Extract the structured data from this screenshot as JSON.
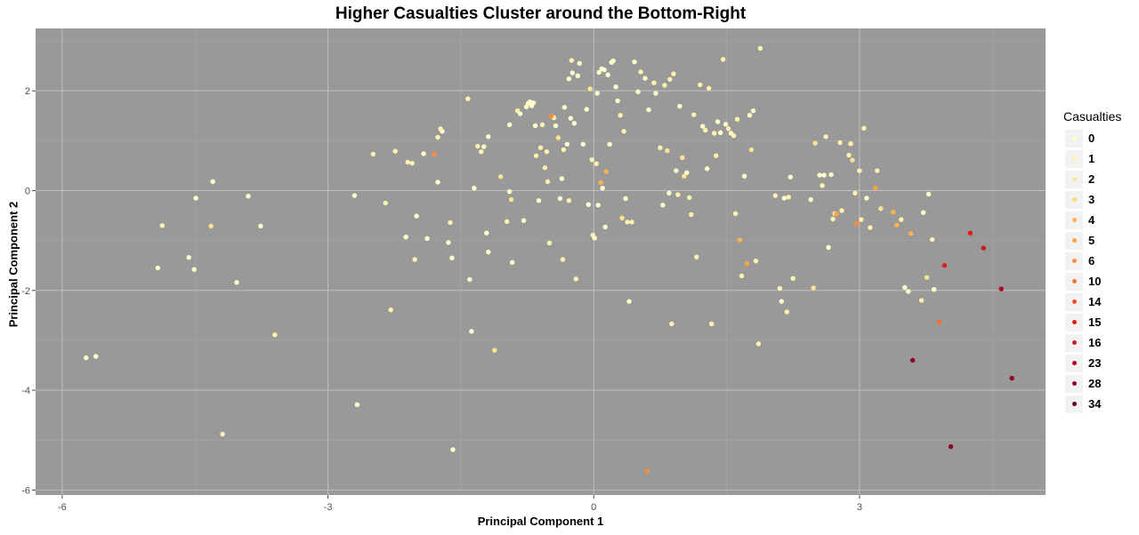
{
  "chart_data": {
    "type": "scatter",
    "title": "Higher Casualties Cluster around the Bottom-Right",
    "xlabel": "Principal Component 1",
    "ylabel": "Principal Component 2",
    "xlim": [
      -6.3,
      5.1
    ],
    "ylim": [
      -6.1,
      3.25
    ],
    "xticks": [
      -6,
      -3,
      0,
      3
    ],
    "yticks": [
      -6,
      -4,
      -2,
      0,
      2
    ],
    "grid": true,
    "legend": {
      "title": "Casualties",
      "position": "right",
      "levels": [
        {
          "label": "0",
          "color": "#ffffcc"
        },
        {
          "label": "1",
          "color": "#fff2ae"
        },
        {
          "label": "2",
          "color": "#fee391"
        },
        {
          "label": "3",
          "color": "#fed976"
        },
        {
          "label": "4",
          "color": "#feb24c"
        },
        {
          "label": "5",
          "color": "#fda444"
        },
        {
          "label": "6",
          "color": "#fd8d3c"
        },
        {
          "label": "10",
          "color": "#f87036"
        },
        {
          "label": "14",
          "color": "#f4502c"
        },
        {
          "label": "15",
          "color": "#e31a1c"
        },
        {
          "label": "16",
          "color": "#cb1a22"
        },
        {
          "label": "23",
          "color": "#b10026"
        },
        {
          "label": "28",
          "color": "#900024"
        },
        {
          "label": "34",
          "color": "#6a0020"
        }
      ]
    },
    "points": [
      {
        "x": -5.73,
        "y": -3.35,
        "c": "0"
      },
      {
        "x": -5.62,
        "y": -3.32,
        "c": "0"
      },
      {
        "x": -4.92,
        "y": -1.55,
        "c": "0"
      },
      {
        "x": -4.87,
        "y": -0.7,
        "c": "1"
      },
      {
        "x": -4.57,
        "y": -1.34,
        "c": "0"
      },
      {
        "x": -4.51,
        "y": -1.58,
        "c": "0"
      },
      {
        "x": -4.49,
        "y": -0.15,
        "c": "0"
      },
      {
        "x": -4.32,
        "y": -0.71,
        "c": "2"
      },
      {
        "x": -4.3,
        "y": 0.18,
        "c": "0"
      },
      {
        "x": -4.19,
        "y": -4.88,
        "c": "1"
      },
      {
        "x": -4.03,
        "y": -1.84,
        "c": "0"
      },
      {
        "x": -3.9,
        "y": -0.11,
        "c": "0"
      },
      {
        "x": -3.76,
        "y": -0.71,
        "c": "0"
      },
      {
        "x": -3.6,
        "y": -2.89,
        "c": "1"
      },
      {
        "x": -2.7,
        "y": -0.1,
        "c": "0"
      },
      {
        "x": -2.67,
        "y": -4.29,
        "c": "0"
      },
      {
        "x": -2.49,
        "y": 0.73,
        "c": "1"
      },
      {
        "x": -2.35,
        "y": -0.25,
        "c": "1"
      },
      {
        "x": -2.29,
        "y": -2.39,
        "c": "1"
      },
      {
        "x": -2.24,
        "y": 0.79,
        "c": "1"
      },
      {
        "x": -2.12,
        "y": -0.93,
        "c": "0"
      },
      {
        "x": -2.1,
        "y": 0.57,
        "c": "1"
      },
      {
        "x": -2.05,
        "y": 0.55,
        "c": "1"
      },
      {
        "x": -2.02,
        "y": -1.38,
        "c": "1"
      },
      {
        "x": -2.0,
        "y": -0.51,
        "c": "0"
      },
      {
        "x": -1.92,
        "y": 0.74,
        "c": "0"
      },
      {
        "x": -1.88,
        "y": -0.96,
        "c": "0"
      },
      {
        "x": -1.8,
        "y": 0.73,
        "c": "6"
      },
      {
        "x": -1.76,
        "y": 1.07,
        "c": "1"
      },
      {
        "x": -1.76,
        "y": 0.17,
        "c": "0"
      },
      {
        "x": -1.73,
        "y": 1.24,
        "c": "1"
      },
      {
        "x": -1.71,
        "y": 1.19,
        "c": "0"
      },
      {
        "x": -1.64,
        "y": -1.04,
        "c": "0"
      },
      {
        "x": -1.62,
        "y": -0.64,
        "c": "1"
      },
      {
        "x": -1.6,
        "y": -1.35,
        "c": "0"
      },
      {
        "x": -1.59,
        "y": -5.19,
        "c": "0"
      },
      {
        "x": -1.42,
        "y": 1.84,
        "c": "1"
      },
      {
        "x": -1.4,
        "y": -1.78,
        "c": "0"
      },
      {
        "x": -1.38,
        "y": -2.82,
        "c": "0"
      },
      {
        "x": -1.35,
        "y": 0.05,
        "c": "0"
      },
      {
        "x": -1.31,
        "y": 0.89,
        "c": "1"
      },
      {
        "x": -1.27,
        "y": 0.78,
        "c": "1"
      },
      {
        "x": -1.24,
        "y": 0.88,
        "c": "0"
      },
      {
        "x": -1.21,
        "y": -0.85,
        "c": "0"
      },
      {
        "x": -1.19,
        "y": 1.08,
        "c": "0"
      },
      {
        "x": -1.19,
        "y": -1.23,
        "c": "0"
      },
      {
        "x": -1.12,
        "y": -3.2,
        "c": "2"
      },
      {
        "x": -1.05,
        "y": 0.28,
        "c": "2"
      },
      {
        "x": -0.98,
        "y": -0.62,
        "c": "1"
      },
      {
        "x": -0.95,
        "y": 1.32,
        "c": "0"
      },
      {
        "x": -0.95,
        "y": -0.02,
        "c": "0"
      },
      {
        "x": -0.93,
        "y": -0.18,
        "c": "2"
      },
      {
        "x": -0.92,
        "y": -1.44,
        "c": "0"
      },
      {
        "x": -0.86,
        "y": 1.6,
        "c": "1"
      },
      {
        "x": -0.83,
        "y": 1.54,
        "c": "0"
      },
      {
        "x": -0.79,
        "y": -0.6,
        "c": "0"
      },
      {
        "x": -0.76,
        "y": 1.68,
        "c": "0"
      },
      {
        "x": -0.74,
        "y": 1.75,
        "c": "0"
      },
      {
        "x": -0.72,
        "y": 1.78,
        "c": "0"
      },
      {
        "x": -0.7,
        "y": 1.7,
        "c": "0"
      },
      {
        "x": -0.68,
        "y": 1.76,
        "c": "0"
      },
      {
        "x": -0.66,
        "y": 1.3,
        "c": "0"
      },
      {
        "x": -0.65,
        "y": 0.7,
        "c": "1"
      },
      {
        "x": -0.62,
        "y": -0.2,
        "c": "0"
      },
      {
        "x": -0.6,
        "y": 0.86,
        "c": "1"
      },
      {
        "x": -0.58,
        "y": 1.32,
        "c": "1"
      },
      {
        "x": -0.55,
        "y": 0.46,
        "c": "1"
      },
      {
        "x": -0.53,
        "y": 0.78,
        "c": "1"
      },
      {
        "x": -0.52,
        "y": 0.18,
        "c": "1"
      },
      {
        "x": -0.5,
        "y": -1.05,
        "c": "1"
      },
      {
        "x": -0.48,
        "y": 1.49,
        "c": "6"
      },
      {
        "x": -0.45,
        "y": 1.46,
        "c": "1"
      },
      {
        "x": -0.43,
        "y": 1.3,
        "c": "0"
      },
      {
        "x": -0.4,
        "y": 1.06,
        "c": "2"
      },
      {
        "x": -0.38,
        "y": -0.16,
        "c": "0"
      },
      {
        "x": -0.36,
        "y": 0.24,
        "c": "0"
      },
      {
        "x": -0.35,
        "y": -1.38,
        "c": "1"
      },
      {
        "x": -0.34,
        "y": 0.82,
        "c": "1"
      },
      {
        "x": -0.33,
        "y": 1.67,
        "c": "0"
      },
      {
        "x": -0.3,
        "y": 0.93,
        "c": "0"
      },
      {
        "x": -0.28,
        "y": 2.24,
        "c": "0"
      },
      {
        "x": -0.28,
        "y": -0.2,
        "c": "1"
      },
      {
        "x": -0.26,
        "y": 1.45,
        "c": "0"
      },
      {
        "x": -0.25,
        "y": 2.61,
        "c": "1"
      },
      {
        "x": -0.24,
        "y": 2.36,
        "c": "0"
      },
      {
        "x": -0.22,
        "y": 1.35,
        "c": "0"
      },
      {
        "x": -0.2,
        "y": -1.77,
        "c": "1"
      },
      {
        "x": -0.18,
        "y": 2.3,
        "c": "0"
      },
      {
        "x": -0.16,
        "y": 2.55,
        "c": "0"
      },
      {
        "x": -0.12,
        "y": 0.93,
        "c": "0"
      },
      {
        "x": -0.08,
        "y": 1.63,
        "c": "0"
      },
      {
        "x": -0.06,
        "y": -0.28,
        "c": "0"
      },
      {
        "x": -0.04,
        "y": 2.04,
        "c": "2"
      },
      {
        "x": -0.02,
        "y": 0.62,
        "c": "1"
      },
      {
        "x": -0.01,
        "y": -0.89,
        "c": "1"
      },
      {
        "x": 0.01,
        "y": -0.95,
        "c": "0"
      },
      {
        "x": 0.03,
        "y": 0.54,
        "c": "1"
      },
      {
        "x": 0.04,
        "y": 1.95,
        "c": "0"
      },
      {
        "x": 0.05,
        "y": -0.29,
        "c": "0"
      },
      {
        "x": 0.06,
        "y": 2.37,
        "c": "0"
      },
      {
        "x": 0.08,
        "y": 0.16,
        "c": "4"
      },
      {
        "x": 0.09,
        "y": 2.44,
        "c": "0"
      },
      {
        "x": 0.1,
        "y": 0.05,
        "c": "0"
      },
      {
        "x": 0.12,
        "y": 2.42,
        "c": "0"
      },
      {
        "x": 0.13,
        "y": -0.73,
        "c": "0"
      },
      {
        "x": 0.14,
        "y": 0.38,
        "c": "4"
      },
      {
        "x": 0.16,
        "y": 2.32,
        "c": "0"
      },
      {
        "x": 0.18,
        "y": 0.93,
        "c": "0"
      },
      {
        "x": 0.2,
        "y": 2.57,
        "c": "0"
      },
      {
        "x": 0.22,
        "y": 2.6,
        "c": "0"
      },
      {
        "x": 0.25,
        "y": 2.08,
        "c": "0"
      },
      {
        "x": 0.27,
        "y": 1.8,
        "c": "0"
      },
      {
        "x": 0.3,
        "y": 1.51,
        "c": "1"
      },
      {
        "x": 0.32,
        "y": -0.55,
        "c": "2"
      },
      {
        "x": 0.34,
        "y": 1.19,
        "c": "1"
      },
      {
        "x": 0.36,
        "y": -0.16,
        "c": "0"
      },
      {
        "x": 0.38,
        "y": -0.63,
        "c": "1"
      },
      {
        "x": 0.4,
        "y": -2.22,
        "c": "0"
      },
      {
        "x": 0.43,
        "y": -0.63,
        "c": "1"
      },
      {
        "x": 0.46,
        "y": 2.58,
        "c": "0"
      },
      {
        "x": 0.5,
        "y": 1.98,
        "c": "0"
      },
      {
        "x": 0.53,
        "y": 2.38,
        "c": "1"
      },
      {
        "x": 0.58,
        "y": 2.25,
        "c": "0"
      },
      {
        "x": 0.6,
        "y": -5.62,
        "c": "6"
      },
      {
        "x": 0.62,
        "y": 1.62,
        "c": "0"
      },
      {
        "x": 0.68,
        "y": 2.16,
        "c": "1"
      },
      {
        "x": 0.7,
        "y": 1.95,
        "c": "0"
      },
      {
        "x": 0.75,
        "y": 0.86,
        "c": "1"
      },
      {
        "x": 0.78,
        "y": -0.29,
        "c": "0"
      },
      {
        "x": 0.8,
        "y": 2.11,
        "c": "1"
      },
      {
        "x": 0.83,
        "y": 0.8,
        "c": "2"
      },
      {
        "x": 0.85,
        "y": -0.05,
        "c": "0"
      },
      {
        "x": 0.86,
        "y": 2.23,
        "c": "1"
      },
      {
        "x": 0.88,
        "y": -2.67,
        "c": "1"
      },
      {
        "x": 0.9,
        "y": 2.34,
        "c": "1"
      },
      {
        "x": 0.93,
        "y": 0.4,
        "c": "0"
      },
      {
        "x": 0.95,
        "y": -0.08,
        "c": "1"
      },
      {
        "x": 0.97,
        "y": 1.69,
        "c": "0"
      },
      {
        "x": 1.0,
        "y": 0.66,
        "c": "2"
      },
      {
        "x": 1.02,
        "y": 0.29,
        "c": "2"
      },
      {
        "x": 1.05,
        "y": 0.36,
        "c": "0"
      },
      {
        "x": 1.08,
        "y": -0.14,
        "c": "1"
      },
      {
        "x": 1.1,
        "y": -0.48,
        "c": "1"
      },
      {
        "x": 1.13,
        "y": 1.52,
        "c": "1"
      },
      {
        "x": 1.16,
        "y": -1.33,
        "c": "1"
      },
      {
        "x": 1.2,
        "y": 2.12,
        "c": "1"
      },
      {
        "x": 1.23,
        "y": 1.29,
        "c": "0"
      },
      {
        "x": 1.26,
        "y": 1.21,
        "c": "1"
      },
      {
        "x": 1.28,
        "y": 0.44,
        "c": "0"
      },
      {
        "x": 1.3,
        "y": 2.05,
        "c": "1"
      },
      {
        "x": 1.33,
        "y": -2.67,
        "c": "1"
      },
      {
        "x": 1.36,
        "y": 1.15,
        "c": "1"
      },
      {
        "x": 1.38,
        "y": 0.7,
        "c": "1"
      },
      {
        "x": 1.4,
        "y": 1.38,
        "c": "0"
      },
      {
        "x": 1.43,
        "y": 1.16,
        "c": "0"
      },
      {
        "x": 1.46,
        "y": 2.63,
        "c": "1"
      },
      {
        "x": 1.49,
        "y": 1.33,
        "c": "0"
      },
      {
        "x": 1.52,
        "y": 1.24,
        "c": "1"
      },
      {
        "x": 1.55,
        "y": 1.15,
        "c": "0"
      },
      {
        "x": 1.58,
        "y": 1.1,
        "c": "1"
      },
      {
        "x": 1.6,
        "y": -0.46,
        "c": "1"
      },
      {
        "x": 1.62,
        "y": 1.43,
        "c": "1"
      },
      {
        "x": 1.65,
        "y": -0.99,
        "c": "4"
      },
      {
        "x": 1.67,
        "y": -1.71,
        "c": "1"
      },
      {
        "x": 1.7,
        "y": 0.29,
        "c": "0"
      },
      {
        "x": 1.73,
        "y": -1.46,
        "c": "5"
      },
      {
        "x": 1.76,
        "y": 1.51,
        "c": "0"
      },
      {
        "x": 1.78,
        "y": 0.82,
        "c": "2"
      },
      {
        "x": 1.8,
        "y": 1.6,
        "c": "0"
      },
      {
        "x": 1.83,
        "y": -1.41,
        "c": "1"
      },
      {
        "x": 1.86,
        "y": -3.07,
        "c": "1"
      },
      {
        "x": 1.88,
        "y": 2.85,
        "c": "1"
      },
      {
        "x": 2.05,
        "y": -0.1,
        "c": "1"
      },
      {
        "x": 2.1,
        "y": -1.96,
        "c": "1"
      },
      {
        "x": 2.12,
        "y": -2.22,
        "c": "0"
      },
      {
        "x": 2.15,
        "y": -0.15,
        "c": "0"
      },
      {
        "x": 2.18,
        "y": -2.43,
        "c": "1"
      },
      {
        "x": 2.2,
        "y": -0.13,
        "c": "1"
      },
      {
        "x": 2.22,
        "y": 0.27,
        "c": "0"
      },
      {
        "x": 2.25,
        "y": -1.76,
        "c": "1"
      },
      {
        "x": 2.45,
        "y": -0.18,
        "c": "0"
      },
      {
        "x": 2.48,
        "y": -1.95,
        "c": "2"
      },
      {
        "x": 2.5,
        "y": 0.95,
        "c": "2"
      },
      {
        "x": 2.55,
        "y": 0.31,
        "c": "0"
      },
      {
        "x": 2.58,
        "y": 0.1,
        "c": "1"
      },
      {
        "x": 2.6,
        "y": 0.31,
        "c": "0"
      },
      {
        "x": 2.62,
        "y": 1.08,
        "c": "1"
      },
      {
        "x": 2.65,
        "y": -1.14,
        "c": "0"
      },
      {
        "x": 2.68,
        "y": 0.32,
        "c": "0"
      },
      {
        "x": 2.7,
        "y": -0.57,
        "c": "1"
      },
      {
        "x": 2.72,
        "y": -0.46,
        "c": "2"
      },
      {
        "x": 2.74,
        "y": -0.47,
        "c": "5"
      },
      {
        "x": 2.78,
        "y": 0.96,
        "c": "1"
      },
      {
        "x": 2.8,
        "y": -0.4,
        "c": "1"
      },
      {
        "x": 2.88,
        "y": 0.71,
        "c": "1"
      },
      {
        "x": 2.9,
        "y": 0.94,
        "c": "1"
      },
      {
        "x": 2.92,
        "y": 0.61,
        "c": "2"
      },
      {
        "x": 2.95,
        "y": -0.05,
        "c": "1"
      },
      {
        "x": 2.97,
        "y": -0.66,
        "c": "6"
      },
      {
        "x": 3.0,
        "y": 0.4,
        "c": "1"
      },
      {
        "x": 3.02,
        "y": -0.58,
        "c": "1"
      },
      {
        "x": 3.05,
        "y": 1.25,
        "c": "1"
      },
      {
        "x": 3.08,
        "y": -0.15,
        "c": "0"
      },
      {
        "x": 3.12,
        "y": -0.74,
        "c": "1"
      },
      {
        "x": 3.18,
        "y": 0.05,
        "c": "5"
      },
      {
        "x": 3.2,
        "y": 0.4,
        "c": "1"
      },
      {
        "x": 3.24,
        "y": -0.36,
        "c": "2"
      },
      {
        "x": 3.38,
        "y": -0.43,
        "c": "4"
      },
      {
        "x": 3.42,
        "y": -0.69,
        "c": "4"
      },
      {
        "x": 3.47,
        "y": -0.58,
        "c": "1"
      },
      {
        "x": 3.51,
        "y": -1.94,
        "c": "0"
      },
      {
        "x": 3.55,
        "y": -2.02,
        "c": "0"
      },
      {
        "x": 3.58,
        "y": -0.86,
        "c": "4"
      },
      {
        "x": 3.7,
        "y": -2.2,
        "c": "1"
      },
      {
        "x": 3.72,
        "y": -0.44,
        "c": "0"
      },
      {
        "x": 3.76,
        "y": -1.74,
        "c": "2"
      },
      {
        "x": 3.78,
        "y": -0.07,
        "c": "0"
      },
      {
        "x": 3.82,
        "y": -0.98,
        "c": "1"
      },
      {
        "x": 3.6,
        "y": -3.4,
        "c": "28"
      },
      {
        "x": 3.84,
        "y": -1.98,
        "c": "0"
      },
      {
        "x": 3.9,
        "y": -2.63,
        "c": "10"
      },
      {
        "x": 3.96,
        "y": -1.5,
        "c": "15"
      },
      {
        "x": 4.03,
        "y": -5.13,
        "c": "28"
      },
      {
        "x": 4.25,
        "y": -0.85,
        "c": "15"
      },
      {
        "x": 4.4,
        "y": -1.15,
        "c": "16"
      },
      {
        "x": 4.6,
        "y": -1.97,
        "c": "23"
      },
      {
        "x": 4.72,
        "y": -3.76,
        "c": "28"
      }
    ]
  }
}
